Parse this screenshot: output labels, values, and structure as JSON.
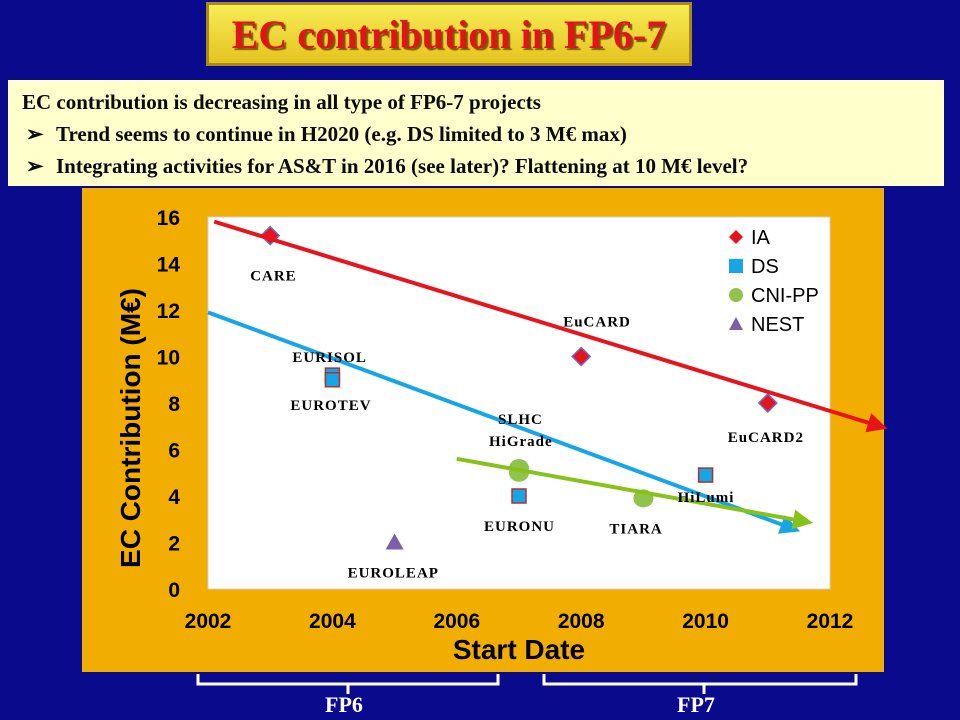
{
  "slide": {
    "title": "EC contribution in FP6-7",
    "text_line1": "EC contribution is decreasing in all type of FP6-7  projects",
    "bullet1": "Trend seems to continue in H2020 (e.g. DS limited to 3 M€ max)",
    "bullet2": "Integrating activities for AS&T in 2016 (see later)? Flattening at 10 M€ level?",
    "bullet_glyph": "➢",
    "fp6_label": "FP6",
    "fp7_label": "FP7"
  },
  "chart_data": {
    "type": "scatter",
    "xlabel": "Start Date",
    "ylabel": "EC Contribution (M€)",
    "xlim": [
      2002,
      2012
    ],
    "ylim": [
      0,
      16
    ],
    "xticks": [
      2002,
      2004,
      2006,
      2008,
      2010,
      2012
    ],
    "yticks": [
      0,
      2,
      4,
      6,
      8,
      10,
      12,
      14,
      16
    ],
    "grid": false,
    "legend_position": "top-right",
    "series": [
      {
        "name": "IA",
        "marker": "diamond",
        "color": "#e8141c",
        "points": [
          {
            "x": 2003,
            "y": 15.2,
            "label": "CARE"
          },
          {
            "x": 2008,
            "y": 10,
            "label": "EuCARD"
          },
          {
            "x": 2011,
            "y": 8,
            "label": "EuCARD2"
          }
        ]
      },
      {
        "name": "DS",
        "marker": "square",
        "color": "#16a6e8",
        "points": [
          {
            "x": 2004,
            "y": 9.2,
            "label": "EURISOL"
          },
          {
            "x": 2004,
            "y": 9.0,
            "label": "EUROTEV"
          },
          {
            "x": 2007,
            "y": 4,
            "label": "EURONU"
          },
          {
            "x": 2010,
            "y": 4.9,
            "label": "HiLumi"
          }
        ]
      },
      {
        "name": "CNI-PP",
        "marker": "circle",
        "color": "#8fc34a",
        "points": [
          {
            "x": 2007,
            "y": 5.2,
            "label": "SLHC"
          },
          {
            "x": 2007,
            "y": 5.0,
            "label": "HiGrade"
          },
          {
            "x": 2009,
            "y": 3.9,
            "label": "TIARA"
          }
        ]
      },
      {
        "name": "NEST",
        "marker": "triangle",
        "color": "#7b5fa8",
        "points": [
          {
            "x": 2005,
            "y": 2,
            "label": "EUROLEAP"
          }
        ]
      }
    ],
    "trend_lines": [
      {
        "series": "IA",
        "color": "#e8141c",
        "x": [
          2002.1,
          2012.8
        ],
        "y": [
          15.8,
          7.0
        ]
      },
      {
        "series": "DS",
        "color": "#16a6e8",
        "x": [
          2002.0,
          2011.4
        ],
        "y": [
          11.9,
          2.6
        ]
      },
      {
        "series": "CNI-PP",
        "color": "#86c21a",
        "x": [
          2006.0,
          2011.6
        ],
        "y": [
          5.6,
          2.9
        ]
      }
    ]
  }
}
